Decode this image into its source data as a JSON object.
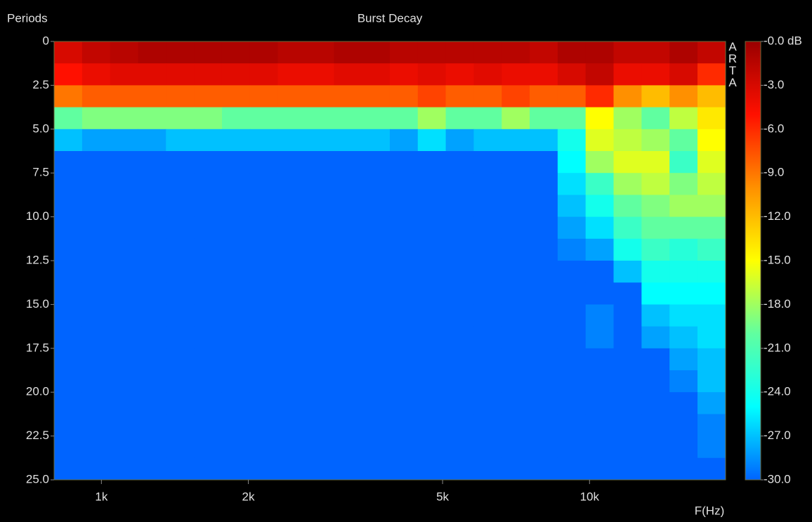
{
  "chart_data": {
    "type": "heatmap",
    "title": "Burst Decay",
    "ylabel": "Periods",
    "xlabel": "F(Hz)",
    "annotation": "ARTA",
    "log_x": true,
    "xlim": [
      800,
      19000
    ],
    "ylim": [
      0,
      25
    ],
    "zlim": [
      -30,
      0
    ],
    "xticks": [
      {
        "value": 1000,
        "label": "1k"
      },
      {
        "value": 2000,
        "label": "2k"
      },
      {
        "value": 5000,
        "label": "5k"
      },
      {
        "value": 10000,
        "label": "10k"
      }
    ],
    "yticks": [
      0,
      2.5,
      {
        "value": 5,
        "label": "5.0"
      },
      7.5,
      {
        "value": 10,
        "label": "10.0"
      },
      12.5,
      {
        "value": 15,
        "label": "15.0"
      },
      17.5,
      {
        "value": 20,
        "label": "20.0"
      },
      22.5,
      {
        "value": 25,
        "label": "25.0"
      }
    ],
    "zticks": [
      {
        "value": 0,
        "label": "-0.0 dB"
      },
      {
        "value": -3,
        "label": "-3.0"
      },
      {
        "value": -6,
        "label": "-6.0"
      },
      {
        "value": -9,
        "label": "-9.0"
      },
      {
        "value": -12,
        "label": "-12.0"
      },
      {
        "value": -15,
        "label": "-15.0"
      },
      {
        "value": -18,
        "label": "-18.0"
      },
      {
        "value": -21,
        "label": "-21.0"
      },
      {
        "value": -24,
        "label": "-24.0"
      },
      {
        "value": -27,
        "label": "-27.0"
      },
      {
        "value": -30,
        "label": "-30.0"
      }
    ],
    "colormap": [
      "#0064ff",
      "#00ffff",
      "#60ffa0",
      "#ffff00",
      "#ff9000",
      "#ff1000",
      "#9a0000"
    ],
    "xbins": [
      800,
      913,
      1042,
      1189,
      1356,
      1548,
      1766,
      2015,
      2299,
      2624,
      2994,
      3416,
      3898,
      4448,
      5075,
      5791,
      6608,
      7540,
      8603,
      9817,
      11201,
      12781,
      14584,
      16641,
      19000
    ],
    "ybins": [
      0,
      1.25,
      2.5,
      3.75,
      5,
      6.25,
      7.5,
      8.75,
      10,
      11.25,
      12.5,
      13.75,
      15,
      16.25,
      17.5,
      18.75,
      20,
      21.25,
      22.5,
      23.75,
      25
    ],
    "z": [
      [
        -3,
        -2,
        -1.5,
        -1,
        -1,
        -1,
        -1,
        -1,
        -1.5,
        -1.5,
        -1,
        -1,
        -1.5,
        -1.5,
        -1.5,
        -1.5,
        -1.5,
        -2,
        -1,
        -1,
        -2,
        -2,
        -1,
        -2
      ],
      [
        -5,
        -4,
        -3.5,
        -3.5,
        -3.5,
        -3.5,
        -3.5,
        -3.5,
        -4,
        -4,
        -3.5,
        -3.5,
        -4,
        -3.5,
        -4,
        -3.5,
        -4,
        -4,
        -3,
        -2,
        -4,
        -4,
        -3,
        -6
      ],
      [
        -9,
        -8,
        -8,
        -8,
        -8,
        -8,
        -8,
        -8,
        -8,
        -8,
        -8,
        -8,
        -8,
        -7,
        -8,
        -8,
        -7,
        -8,
        -8,
        -6,
        -10,
        -12,
        -10,
        -12
      ],
      [
        -20,
        -19,
        -19,
        -19,
        -19,
        -19,
        -20,
        -20,
        -20,
        -20,
        -20,
        -20,
        -20,
        -18,
        -20,
        -20,
        -18,
        -20,
        -20,
        -15,
        -18,
        -20,
        -17,
        -14
      ],
      [
        -27,
        -28,
        -28,
        -28,
        -27,
        -27,
        -27,
        -27,
        -27,
        -27,
        -27,
        -27,
        -28,
        -26,
        -28,
        -27,
        -27,
        -27,
        -24,
        -16,
        -17,
        -18,
        -20,
        -15
      ],
      [
        -30,
        -30,
        -30,
        -30,
        -30,
        -30,
        -30,
        -30,
        -30,
        -30,
        -30,
        -30,
        -30,
        -30,
        -30,
        -30,
        -30,
        -30,
        -25,
        -18,
        -16,
        -16,
        -22,
        -16
      ],
      [
        -30,
        -30,
        -30,
        -30,
        -30,
        -30,
        -30,
        -30,
        -30,
        -30,
        -30,
        -30,
        -30,
        -30,
        -30,
        -30,
        -30,
        -30,
        -26,
        -22,
        -18,
        -17,
        -19,
        -17
      ],
      [
        -30,
        -30,
        -30,
        -30,
        -30,
        -30,
        -30,
        -30,
        -30,
        -30,
        -30,
        -30,
        -30,
        -30,
        -30,
        -30,
        -30,
        -30,
        -27,
        -24,
        -20,
        -19,
        -18,
        -18
      ],
      [
        -30,
        -30,
        -30,
        -30,
        -30,
        -30,
        -30,
        -30,
        -30,
        -30,
        -30,
        -30,
        -30,
        -30,
        -30,
        -30,
        -30,
        -30,
        -28,
        -26,
        -22,
        -20,
        -20,
        -20
      ],
      [
        -30,
        -30,
        -30,
        -30,
        -30,
        -30,
        -30,
        -30,
        -30,
        -30,
        -30,
        -30,
        -30,
        -30,
        -30,
        -30,
        -30,
        -30,
        -29,
        -28,
        -24,
        -22,
        -23,
        -22
      ],
      [
        -30,
        -30,
        -30,
        -30,
        -30,
        -30,
        -30,
        -30,
        -30,
        -30,
        -30,
        -30,
        -30,
        -30,
        -30,
        -30,
        -30,
        -30,
        -30,
        -30,
        -27,
        -24,
        -24,
        -24
      ],
      [
        -30,
        -30,
        -30,
        -30,
        -30,
        -30,
        -30,
        -30,
        -30,
        -30,
        -30,
        -30,
        -30,
        -30,
        -30,
        -30,
        -30,
        -30,
        -30,
        -30,
        -30,
        -25,
        -25,
        -25
      ],
      [
        -30,
        -30,
        -30,
        -30,
        -30,
        -30,
        -30,
        -30,
        -30,
        -30,
        -30,
        -30,
        -30,
        -30,
        -30,
        -30,
        -30,
        -30,
        -30,
        -29,
        -30,
        -27,
        -26,
        -26
      ],
      [
        -30,
        -30,
        -30,
        -30,
        -30,
        -30,
        -30,
        -30,
        -30,
        -30,
        -30,
        -30,
        -30,
        -30,
        -30,
        -30,
        -30,
        -30,
        -30,
        -29,
        -30,
        -28,
        -27,
        -26
      ],
      [
        -30,
        -30,
        -30,
        -30,
        -30,
        -30,
        -30,
        -30,
        -30,
        -30,
        -30,
        -30,
        -30,
        -30,
        -30,
        -30,
        -30,
        -30,
        -30,
        -30,
        -30,
        -30,
        -28,
        -27
      ],
      [
        -30,
        -30,
        -30,
        -30,
        -30,
        -30,
        -30,
        -30,
        -30,
        -30,
        -30,
        -30,
        -30,
        -30,
        -30,
        -30,
        -30,
        -30,
        -30,
        -30,
        -30,
        -30,
        -29,
        -27
      ],
      [
        -30,
        -30,
        -30,
        -30,
        -30,
        -30,
        -30,
        -30,
        -30,
        -30,
        -30,
        -30,
        -30,
        -30,
        -30,
        -30,
        -30,
        -30,
        -30,
        -30,
        -30,
        -30,
        -30,
        -28
      ],
      [
        -30,
        -30,
        -30,
        -30,
        -30,
        -30,
        -30,
        -30,
        -30,
        -30,
        -30,
        -30,
        -30,
        -30,
        -30,
        -30,
        -30,
        -30,
        -30,
        -30,
        -30,
        -30,
        -30,
        -29
      ],
      [
        -30,
        -30,
        -30,
        -30,
        -30,
        -30,
        -30,
        -30,
        -30,
        -30,
        -30,
        -30,
        -30,
        -30,
        -30,
        -30,
        -30,
        -30,
        -30,
        -30,
        -30,
        -30,
        -30,
        -29
      ],
      [
        -30,
        -30,
        -30,
        -30,
        -30,
        -30,
        -30,
        -30,
        -30,
        -30,
        -30,
        -30,
        -30,
        -30,
        -30,
        -30,
        -30,
        -30,
        -30,
        -30,
        -30,
        -30,
        -30,
        -30
      ]
    ]
  }
}
